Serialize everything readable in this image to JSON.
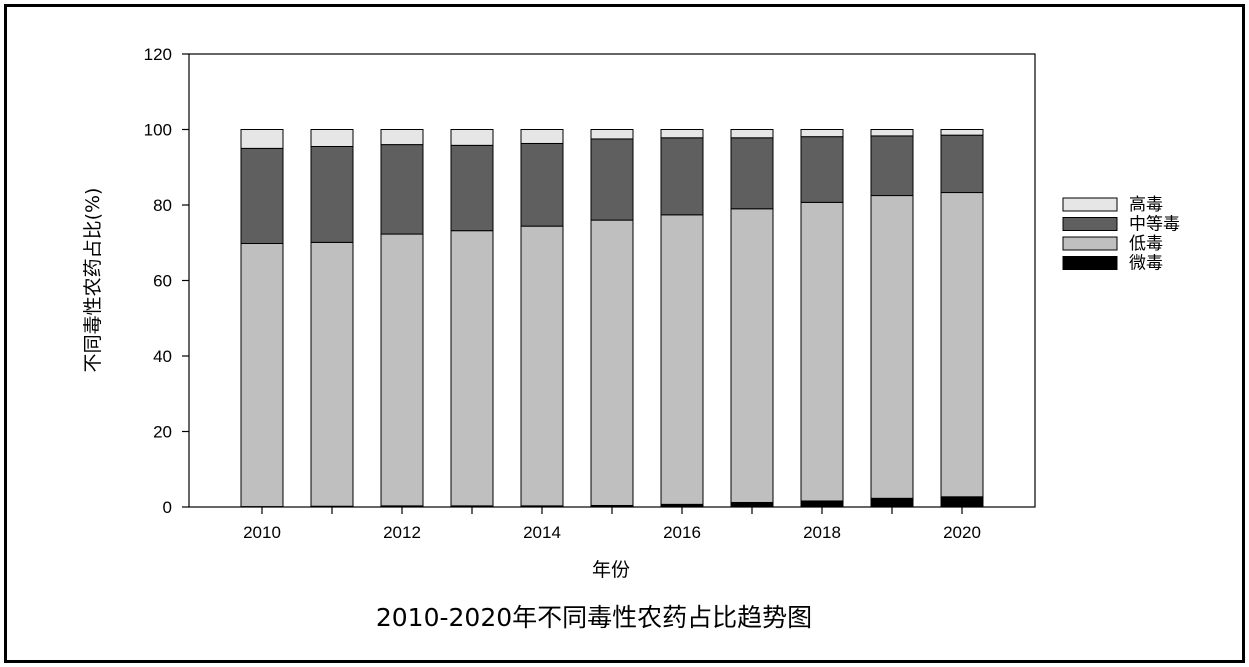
{
  "chart_data": {
    "type": "bar",
    "stacked": true,
    "title": "2010-2020年不同毒性农药占比趋势图",
    "xlabel": "年份",
    "ylabel": "不同毒性农药占比(%)",
    "ylim": [
      0,
      120
    ],
    "yticks": [
      0,
      20,
      40,
      60,
      80,
      100,
      120
    ],
    "categories": [
      "2010",
      "2011",
      "2012",
      "2013",
      "2014",
      "2015",
      "2016",
      "2017",
      "2018",
      "2019",
      "2020"
    ],
    "xtick_labels": [
      "2010",
      "",
      "2012",
      "",
      "2014",
      "",
      "2016",
      "",
      "2018",
      "",
      "2020"
    ],
    "grid": false,
    "legend_position": "right",
    "series": [
      {
        "name": "微毒",
        "color": "#000000",
        "values": [
          0.1,
          0.2,
          0.3,
          0.3,
          0.3,
          0.4,
          0.7,
          1.2,
          1.6,
          2.3,
          2.7
        ]
      },
      {
        "name": "低毒",
        "color": "#bfbfbf",
        "values": [
          69.7,
          69.9,
          72.0,
          72.9,
          74.1,
          75.6,
          76.7,
          77.8,
          79.1,
          80.2,
          80.6
        ]
      },
      {
        "name": "中等毒",
        "color": "#5f5f5f",
        "values": [
          25.2,
          25.4,
          23.7,
          22.6,
          21.9,
          21.5,
          20.4,
          18.8,
          17.4,
          15.8,
          15.2
        ]
      },
      {
        "name": "高毒",
        "color": "#e6e6e6",
        "values": [
          5.0,
          4.5,
          4.0,
          4.2,
          3.7,
          2.5,
          2.2,
          2.2,
          1.9,
          1.7,
          1.5
        ]
      }
    ],
    "legend_order": [
      "高毒",
      "中等毒",
      "低毒",
      "微毒"
    ]
  }
}
